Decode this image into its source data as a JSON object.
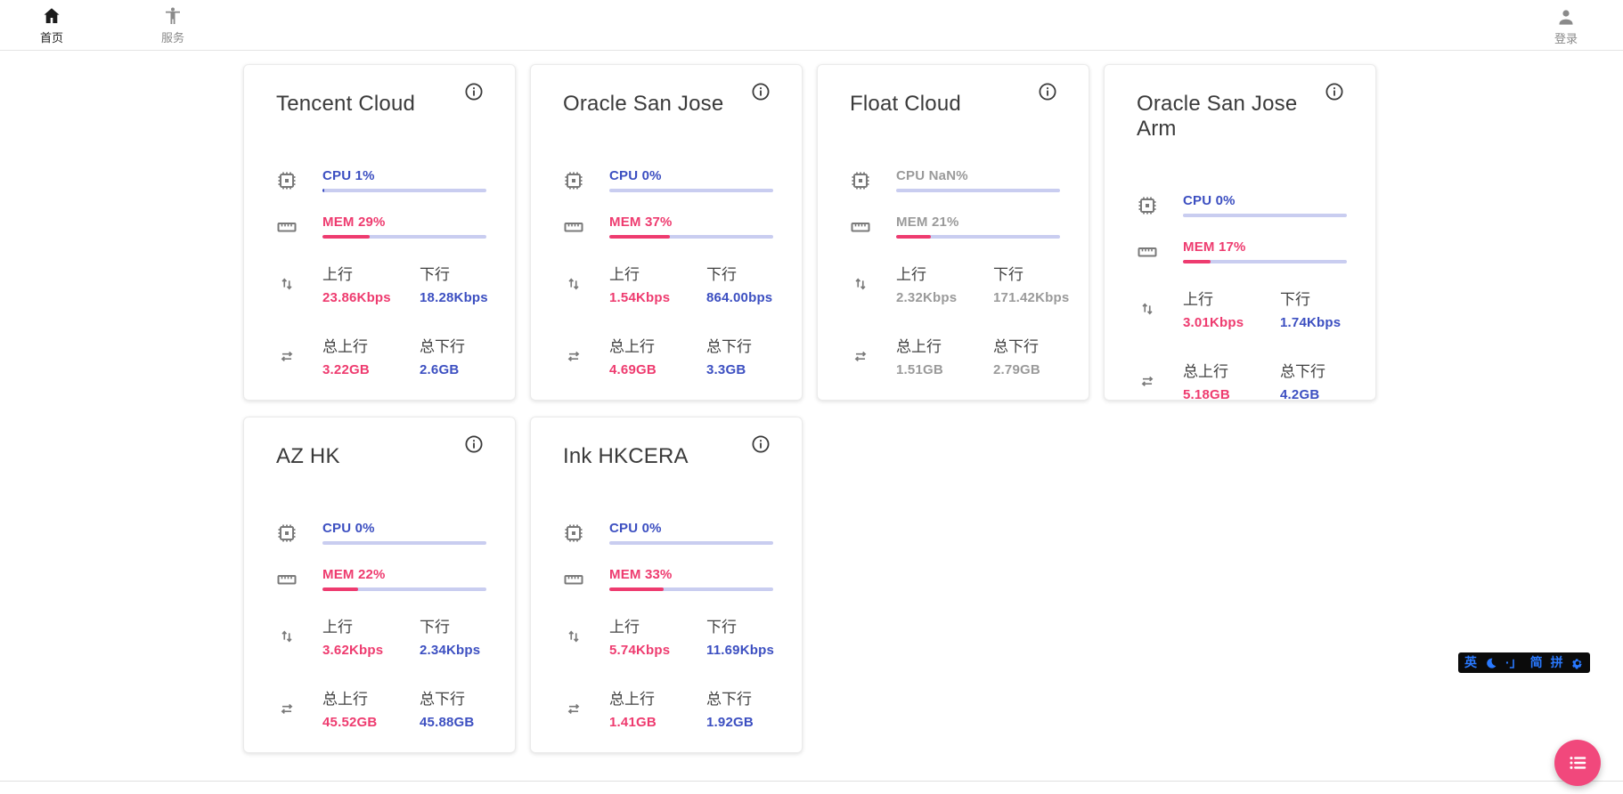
{
  "navbar": {
    "home": {
      "label": "首页",
      "icon": "home-icon",
      "active": true
    },
    "services": {
      "label": "服务",
      "icon": "accessibility-icon",
      "active": false
    },
    "login": {
      "label": "登录",
      "icon": "person-icon",
      "active": false
    }
  },
  "labels": {
    "up": "上行",
    "down": "下行",
    "total_up": "总上行",
    "total_down": "总下行"
  },
  "colors": {
    "accent_blue": "#3c4fc1",
    "accent_pink": "#ee3b6f",
    "track": "#c9cdf0",
    "offline_gray": "#9a9a9a",
    "fab_pink": "#f1487c",
    "ime_blue": "#2979ff"
  },
  "servers": [
    {
      "name": "Tencent Cloud",
      "cpu_label": "CPU 1%",
      "cpu_pct": 1,
      "mem_label": "MEM 29%",
      "mem_pct": 29,
      "up_value": "23.86Kbps",
      "down_value": "18.28Kbps",
      "total_up_value": "3.22GB",
      "total_down_value": "2.6GB"
    },
    {
      "name": "Oracle San Jose",
      "cpu_label": "CPU 0%",
      "cpu_pct": 0,
      "mem_label": "MEM 37%",
      "mem_pct": 37,
      "up_value": "1.54Kbps",
      "down_value": "864.00bps",
      "total_up_value": "4.69GB",
      "total_down_value": "3.3GB"
    },
    {
      "name": "Float Cloud",
      "cpu_label": "CPU NaN%",
      "cpu_pct": 0,
      "mem_label": "MEM 21%",
      "mem_pct": 21,
      "up_value": "2.32Kbps",
      "down_value": "171.42Kbps",
      "total_up_value": "1.51GB",
      "total_down_value": "2.79GB"
    },
    {
      "name": "Oracle San Jose Arm",
      "cpu_label": "CPU 0%",
      "cpu_pct": 0,
      "mem_label": "MEM 17%",
      "mem_pct": 17,
      "up_value": "3.01Kbps",
      "down_value": "1.74Kbps",
      "total_up_value": "5.18GB",
      "total_down_value": "4.2GB"
    },
    {
      "name": "AZ HK",
      "cpu_label": "CPU 0%",
      "cpu_pct": 0,
      "mem_label": "MEM 22%",
      "mem_pct": 22,
      "up_value": "3.62Kbps",
      "down_value": "2.34Kbps",
      "total_up_value": "45.52GB",
      "total_down_value": "45.88GB"
    },
    {
      "name": "Ink HKCERA",
      "cpu_label": "CPU 0%",
      "cpu_pct": 0,
      "mem_label": "MEM 33%",
      "mem_pct": 33,
      "up_value": "5.74Kbps",
      "down_value": "11.69Kbps",
      "total_up_value": "1.41GB",
      "total_down_value": "1.92GB"
    }
  ],
  "ime": {
    "lang": "英",
    "punct": "·」",
    "simplified": "简",
    "pinyin": "拼"
  },
  "icons": {
    "card_info": "info-icon",
    "cpu": "cpu-chip-icon",
    "mem": "ruler-icon",
    "net": "swap-vertical-arrows-icon",
    "total": "swap-horizontal-arrows-icon",
    "fab": "list-icon"
  }
}
